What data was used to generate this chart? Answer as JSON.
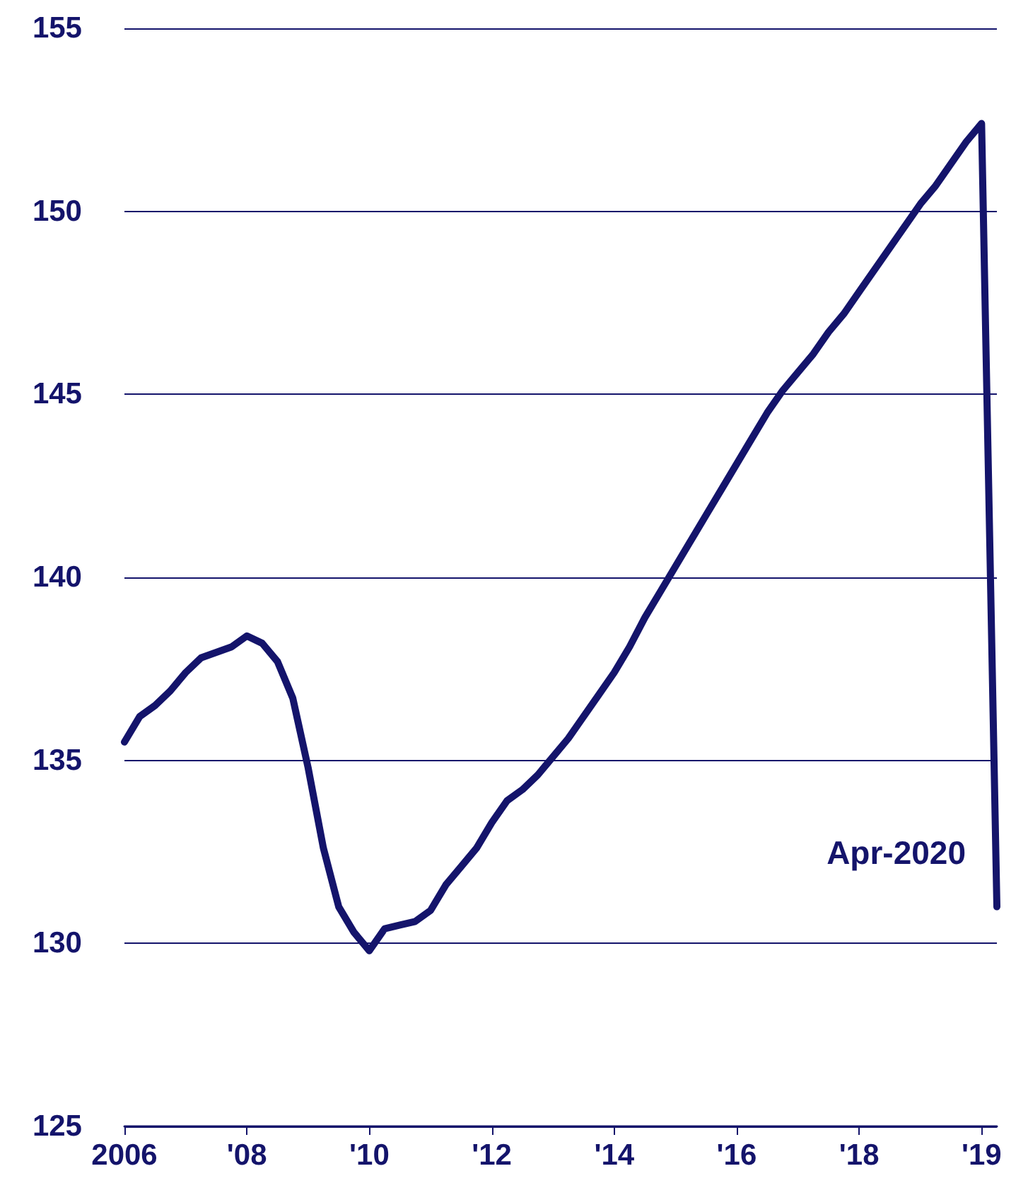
{
  "chart_data": {
    "type": "line",
    "categories": [
      "2006",
      null,
      null,
      null,
      null,
      null,
      null,
      null,
      "'08",
      null,
      null,
      null,
      null,
      null,
      null,
      null,
      "'10",
      null,
      null,
      null,
      null,
      null,
      null,
      null,
      "'12",
      null,
      null,
      null,
      null,
      null,
      null,
      null,
      "'14",
      null,
      null,
      null,
      null,
      null,
      null,
      null,
      "'16",
      null,
      null,
      null,
      null,
      null,
      null,
      null,
      "'18",
      null,
      null,
      null,
      null,
      null,
      null,
      null,
      "'19",
      null
    ],
    "series": [
      {
        "color": "#14146b",
        "values": [
          135.5,
          136.2,
          136.5,
          136.9,
          137.4,
          137.8,
          137.95,
          138.1,
          138.4,
          138.2,
          137.7,
          136.7,
          134.8,
          132.6,
          131.0,
          130.3,
          129.8,
          130.4,
          130.5,
          130.6,
          130.9,
          131.6,
          132.1,
          132.6,
          133.3,
          133.9,
          134.2,
          134.6,
          135.1,
          135.6,
          136.2,
          136.8,
          137.4,
          138.1,
          138.9,
          139.6,
          140.3,
          141.0,
          141.7,
          142.4,
          143.1,
          143.8,
          144.5,
          145.1,
          145.6,
          146.1,
          146.7,
          147.2,
          147.8,
          148.4,
          149.0,
          149.6,
          150.2,
          150.7,
          151.3,
          151.9,
          152.4,
          131.0
        ]
      }
    ],
    "ylim": [
      125,
      155
    ],
    "yticks": [
      125,
      130,
      135,
      140,
      145,
      150,
      155
    ],
    "grid": "y",
    "marker": "none",
    "line_style": "solid",
    "annotations": [
      "Apr-2020"
    ]
  }
}
